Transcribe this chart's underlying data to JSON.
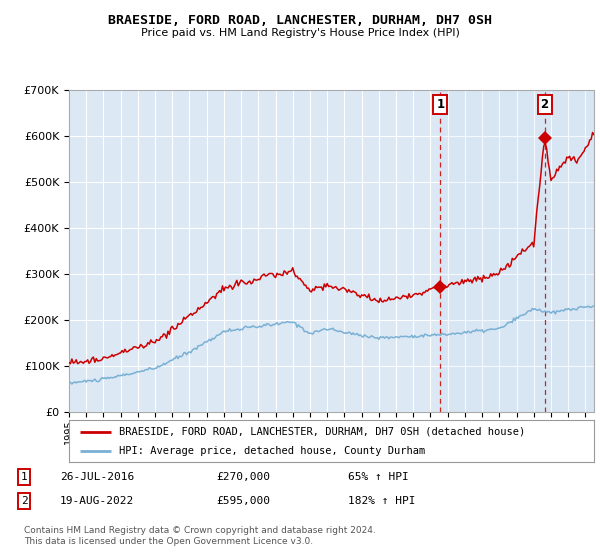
{
  "title": "BRAESIDE, FORD ROAD, LANCHESTER, DURHAM, DH7 0SH",
  "subtitle": "Price paid vs. HM Land Registry's House Price Index (HPI)",
  "background_color": "#ffffff",
  "plot_bg_color": "#dce9f5",
  "grid_color": "#ffffff",
  "sale1": {
    "date_num": 2016.58,
    "price": 270000,
    "label": "1"
  },
  "sale2": {
    "date_num": 2022.63,
    "price": 595000,
    "label": "2"
  },
  "legend_line1": "BRAESIDE, FORD ROAD, LANCHESTER, DURHAM, DH7 0SH (detached house)",
  "legend_line2": "HPI: Average price, detached house, County Durham",
  "footer": "Contains HM Land Registry data © Crown copyright and database right 2024.\nThis data is licensed under the Open Government Licence v3.0.",
  "red_color": "#cc0000",
  "blue_color": "#7ab0d4",
  "xmin": 1995,
  "xmax": 2025.5,
  "ymin": 0,
  "ymax": 700000
}
